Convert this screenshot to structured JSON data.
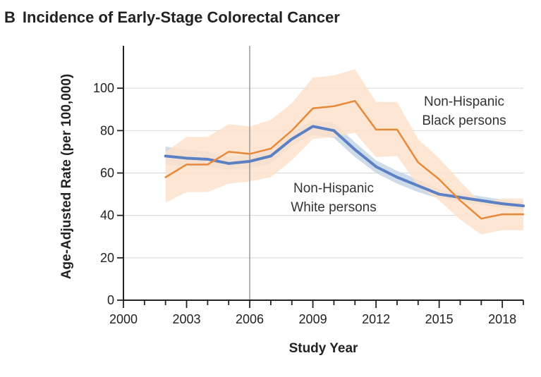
{
  "panel_label": "B",
  "chart_data": {
    "type": "line",
    "title": "Incidence of Early-Stage Colorectal Cancer",
    "xlabel": "Study Year",
    "ylabel": "Age-Adjusted Rate (per 100,000)",
    "xlim": [
      2000,
      2019
    ],
    "ylim": [
      0,
      120
    ],
    "x_ticks": [
      2000,
      2003,
      2006,
      2009,
      2012,
      2015,
      2018
    ],
    "y_ticks": [
      0,
      20,
      40,
      60,
      80,
      100
    ],
    "vline": 2006,
    "grid": "horizontal",
    "series": [
      {
        "name": "Non-Hispanic White persons",
        "label_lines": [
          "Non-Hispanic",
          "White persons"
        ],
        "color": "#5b80c3",
        "band_color": "#c5d6e6",
        "x": [
          2002,
          2003,
          2004,
          2005,
          2006,
          2007,
          2008,
          2009,
          2010,
          2011,
          2012,
          2013,
          2014,
          2015,
          2016,
          2017,
          2018,
          2019
        ],
        "y": [
          68,
          67,
          66.5,
          64.5,
          65.5,
          68,
          76,
          82,
          80,
          71,
          63,
          58,
          54,
          50,
          48.5,
          47,
          45.5,
          44.5
        ],
        "lower": [
          64,
          63,
          63,
          61.5,
          62,
          64.5,
          73,
          78,
          76.5,
          67.5,
          60,
          55,
          51,
          48,
          46.5,
          45,
          43.5,
          42.5
        ],
        "upper": [
          72.5,
          71,
          70,
          67.5,
          69,
          71.5,
          79,
          85,
          83.5,
          74.5,
          66,
          61,
          57,
          52.5,
          50.5,
          49,
          47.5,
          46.5
        ]
      },
      {
        "name": "Non-Hispanic Black persons",
        "label_lines": [
          "Non-Hispanic",
          "Black persons"
        ],
        "color": "#e8893a",
        "band_color": "#fde2cb",
        "x": [
          2002,
          2003,
          2004,
          2005,
          2006,
          2007,
          2008,
          2009,
          2010,
          2011,
          2012,
          2013,
          2014,
          2015,
          2016,
          2017,
          2018,
          2019
        ],
        "y": [
          58,
          64,
          64,
          70,
          69,
          71.5,
          80,
          90.5,
          91.5,
          94,
          80.5,
          80.5,
          65,
          57,
          47,
          38.5,
          40.5,
          40.5
        ],
        "lower": [
          46,
          51,
          51,
          55,
          56,
          58,
          66,
          76,
          77,
          79,
          67.5,
          68,
          54,
          47,
          38,
          31,
          33,
          33
        ],
        "upper": [
          70,
          77,
          77,
          83,
          82,
          85,
          93,
          105,
          106,
          109,
          93.5,
          93.5,
          76,
          67,
          56,
          46,
          48,
          48
        ]
      }
    ]
  }
}
